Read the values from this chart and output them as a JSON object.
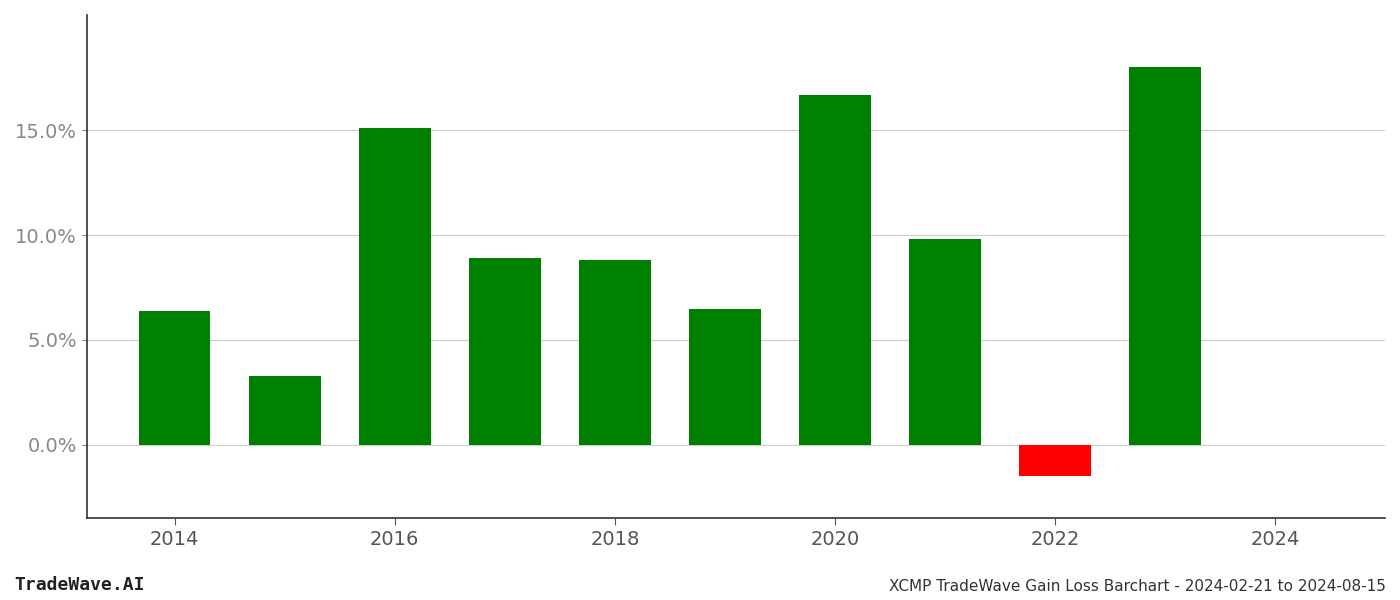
{
  "years": [
    2014,
    2015,
    2016,
    2017,
    2018,
    2019,
    2020,
    2021,
    2022,
    2023
  ],
  "values": [
    0.064,
    0.033,
    0.151,
    0.089,
    0.088,
    0.065,
    0.167,
    0.098,
    -0.015,
    0.18
  ],
  "bar_colors_positive": "#008000",
  "bar_colors_negative": "#ff0000",
  "title": "XCMP TradeWave Gain Loss Barchart - 2024-02-21 to 2024-08-15",
  "watermark": "TradeWave.AI",
  "ylim_min": -0.035,
  "ylim_max": 0.205,
  "yticks": [
    0.0,
    0.05,
    0.1,
    0.15
  ],
  "background_color": "#ffffff",
  "grid_color": "#cccccc",
  "bar_width": 0.65,
  "xlim_min": 2013.2,
  "xlim_max": 2025.0,
  "xticks": [
    2014,
    2016,
    2018,
    2020,
    2022,
    2024
  ],
  "tick_fontsize": 14,
  "title_fontsize": 11,
  "watermark_fontsize": 13
}
